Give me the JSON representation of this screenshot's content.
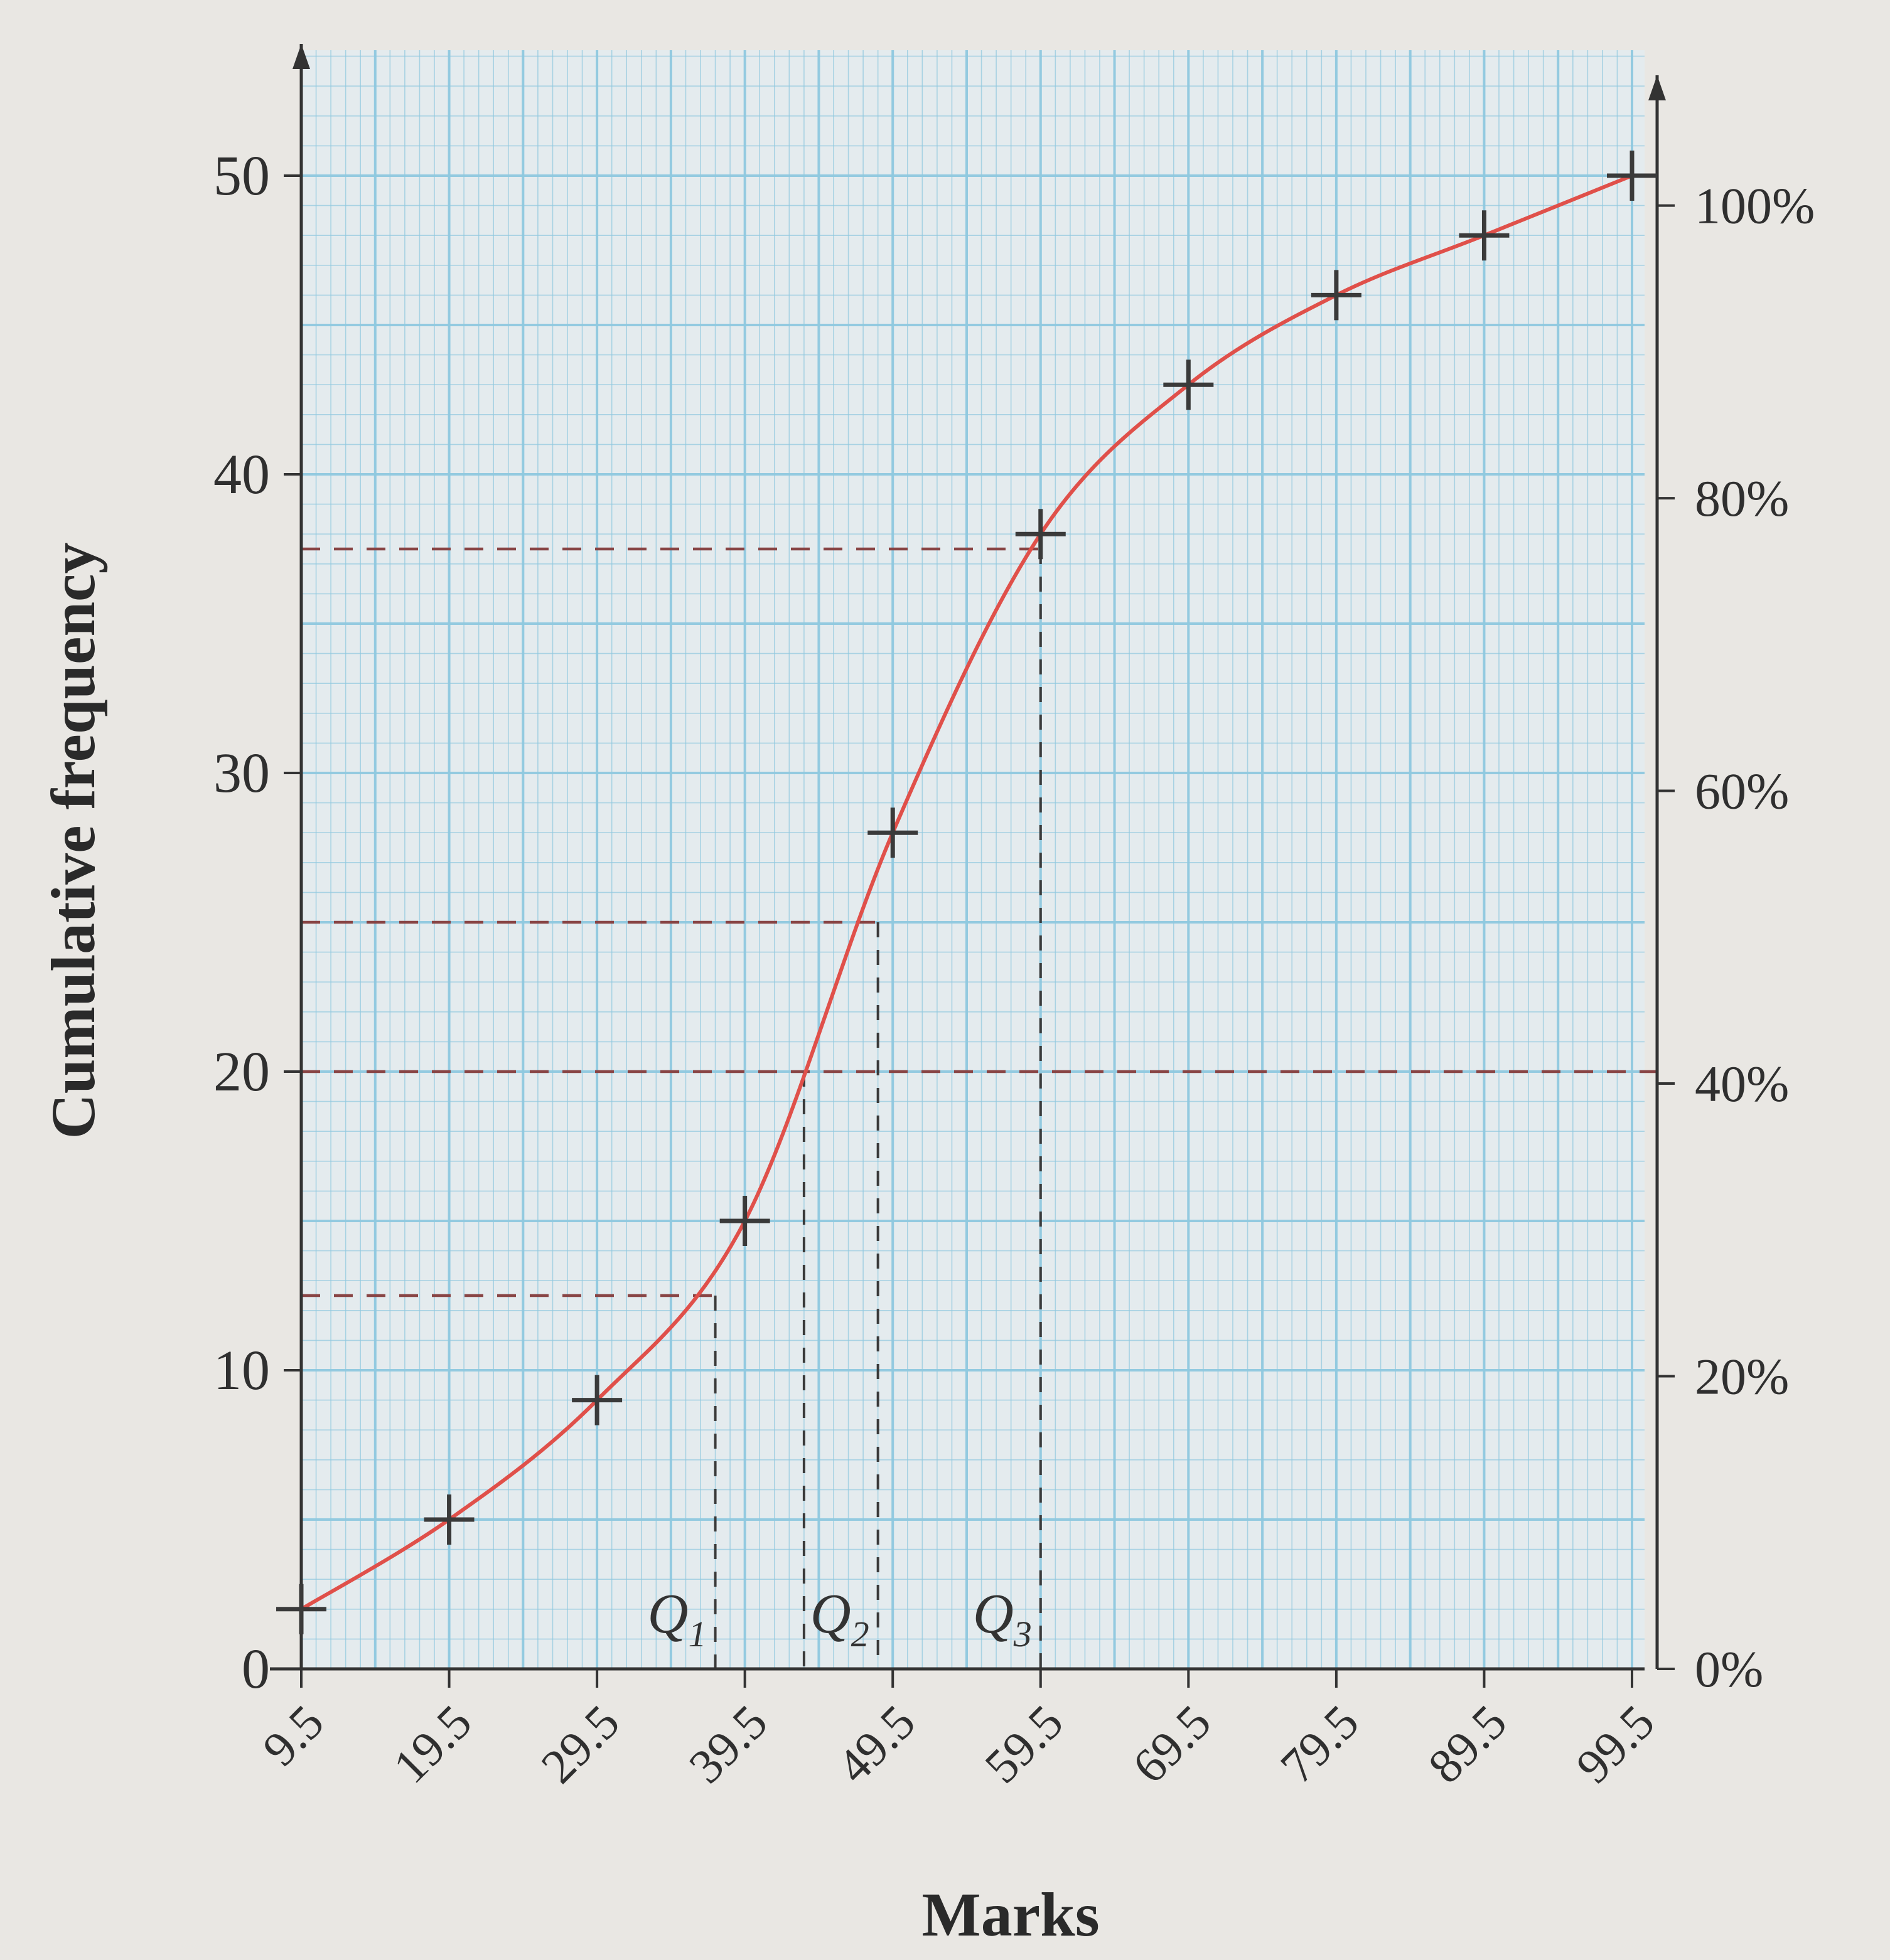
{
  "chart_data": {
    "type": "line",
    "title": "",
    "xlabel": "Marks",
    "ylabel": "Cumulative frequency",
    "x_ticks": [
      "9.5",
      "19.5",
      "29.5",
      "39.5",
      "49.5",
      "59.5",
      "69.5",
      "79.5",
      "89.5",
      "99.5"
    ],
    "y_ticks": [
      "0",
      "10",
      "20",
      "30",
      "40",
      "50"
    ],
    "y2_ticks": [
      "0%",
      "20%",
      "40%",
      "60%",
      "80%",
      "100%"
    ],
    "xlim": [
      9.5,
      99.5
    ],
    "ylim": [
      0,
      50
    ],
    "y2lim": [
      0,
      100
    ],
    "grid": true,
    "series": [
      {
        "x": [
          9.5,
          19.5,
          29.5,
          39.5,
          49.5,
          59.5,
          69.5,
          79.5,
          89.5,
          99.5
        ],
        "y": [
          2,
          5,
          9,
          15,
          28,
          38,
          43,
          46,
          48,
          50
        ]
      }
    ],
    "reference_lines": [
      {
        "y": 12.5,
        "x": 37.5,
        "label": "Q1"
      },
      {
        "y": 25,
        "x": 48.5,
        "label": "Q2"
      },
      {
        "y": 37.5,
        "x": 59.5,
        "label": "Q3"
      },
      {
        "y": 20,
        "x": 43.5,
        "label": ""
      }
    ],
    "colors": {
      "curve": "#e0504a",
      "grid": "#8ec8de",
      "axis": "#333333",
      "dashed": "#884444"
    }
  }
}
